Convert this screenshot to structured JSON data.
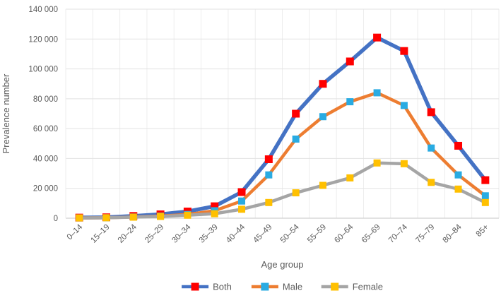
{
  "chart_data": {
    "type": "line",
    "title": "",
    "xlabel": "Age group",
    "ylabel": "Prevalence number",
    "categories": [
      "0–14",
      "15–19",
      "20–24",
      "25–29",
      "30–34",
      "35–39",
      "40–44",
      "45–49",
      "50–54",
      "55–59",
      "60–64",
      "65–69",
      "70–74",
      "75–79",
      "80–84",
      "85+"
    ],
    "series": [
      {
        "name": "Both",
        "line_color": "#4472C4",
        "marker_color": "#FF0000",
        "values": [
          400,
          600,
          1500,
          2600,
          4500,
          8000,
          17500,
          39500,
          70000,
          90000,
          105000,
          121000,
          112000,
          71000,
          48500,
          25500
        ]
      },
      {
        "name": "Male",
        "line_color": "#ED7D31",
        "marker_color": "#29ABE2",
        "values": [
          200,
          300,
          800,
          1400,
          2500,
          5000,
          11500,
          29000,
          53000,
          68000,
          78000,
          84000,
          75500,
          47000,
          29000,
          15000
        ]
      },
      {
        "name": "Female",
        "line_color": "#A5A5A5",
        "marker_color": "#FFC000",
        "values": [
          200,
          300,
          700,
          1200,
          2000,
          3000,
          6000,
          10500,
          17000,
          22000,
          27000,
          37000,
          36500,
          24000,
          19500,
          10500
        ]
      }
    ],
    "ylim": [
      0,
      140000
    ],
    "ytick_step": 20000,
    "ytick_labels": [
      "0",
      "20 000",
      "40 000",
      "60 000",
      "80 000",
      "100 000",
      "120 000",
      "140 000"
    ],
    "grid": true,
    "legend_position": "bottom",
    "colors": {
      "text": "#595959",
      "h_gridline": "#E2E2E2",
      "v_gridline": "#EDEDED",
      "axis_line": "#C6C6C6"
    }
  }
}
